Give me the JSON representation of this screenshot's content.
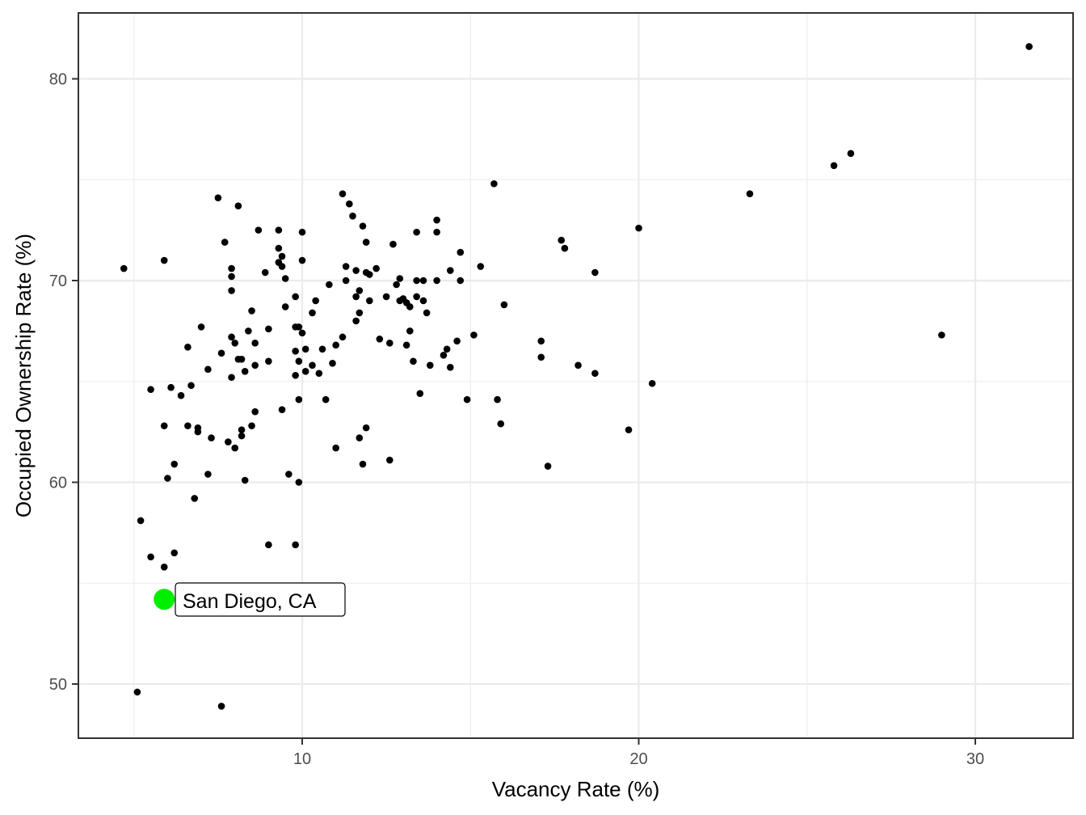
{
  "chart_data": {
    "type": "scatter",
    "title": "",
    "xlabel": "Vacancy Rate (%)",
    "ylabel": "Occupied Ownership Rate (%)",
    "xlim": [
      3.3,
      33.0
    ],
    "ylim": [
      47.3,
      83.2
    ],
    "x_ticks": [
      10,
      20,
      30
    ],
    "y_ticks": [
      50,
      60,
      70,
      80
    ],
    "grid": true,
    "legend": null,
    "point_color": "#000000",
    "highlight": {
      "label": "San Diego, CA",
      "x": 5.9,
      "y": 54.2,
      "color": "#00ee00"
    },
    "points": [
      [
        4.7,
        70.6
      ],
      [
        5.2,
        58.1
      ],
      [
        5.1,
        49.6
      ],
      [
        5.5,
        56.3
      ],
      [
        5.5,
        64.6
      ],
      [
        5.9,
        71.0
      ],
      [
        5.9,
        62.8
      ],
      [
        5.9,
        55.8
      ],
      [
        6.0,
        60.2
      ],
      [
        6.1,
        64.7
      ],
      [
        6.2,
        56.5
      ],
      [
        6.2,
        60.9
      ],
      [
        6.4,
        64.3
      ],
      [
        6.6,
        66.7
      ],
      [
        6.6,
        62.8
      ],
      [
        6.7,
        64.8
      ],
      [
        6.8,
        59.2
      ],
      [
        6.9,
        62.7
      ],
      [
        6.9,
        62.5
      ],
      [
        7.0,
        67.7
      ],
      [
        7.2,
        65.6
      ],
      [
        7.2,
        60.4
      ],
      [
        7.3,
        62.2
      ],
      [
        7.5,
        74.1
      ],
      [
        7.6,
        66.4
      ],
      [
        7.6,
        48.9
      ],
      [
        7.7,
        71.9
      ],
      [
        7.8,
        62.0
      ],
      [
        7.9,
        70.2
      ],
      [
        7.9,
        70.6
      ],
      [
        7.9,
        69.5
      ],
      [
        7.9,
        67.2
      ],
      [
        8.0,
        66.9
      ],
      [
        7.9,
        65.2
      ],
      [
        8.0,
        61.7
      ],
      [
        8.1,
        73.7
      ],
      [
        8.1,
        66.1
      ],
      [
        8.2,
        66.1
      ],
      [
        8.2,
        62.6
      ],
      [
        8.2,
        62.3
      ],
      [
        8.3,
        65.5
      ],
      [
        8.3,
        60.1
      ],
      [
        8.4,
        67.5
      ],
      [
        8.5,
        68.5
      ],
      [
        8.5,
        62.8
      ],
      [
        8.6,
        65.8
      ],
      [
        8.6,
        66.9
      ],
      [
        8.6,
        63.5
      ],
      [
        8.7,
        72.5
      ],
      [
        8.9,
        70.4
      ],
      [
        9.0,
        67.6
      ],
      [
        9.0,
        66.0
      ],
      [
        9.0,
        56.9
      ],
      [
        9.3,
        71.6
      ],
      [
        9.3,
        70.9
      ],
      [
        9.3,
        72.5
      ],
      [
        9.4,
        71.2
      ],
      [
        9.4,
        70.7
      ],
      [
        9.4,
        63.6
      ],
      [
        9.5,
        70.1
      ],
      [
        9.5,
        68.7
      ],
      [
        9.6,
        60.4
      ],
      [
        9.8,
        67.7
      ],
      [
        9.9,
        64.1
      ],
      [
        10.0,
        72.4
      ],
      [
        10.0,
        71.0
      ],
      [
        10.0,
        67.4
      ],
      [
        9.8,
        69.2
      ],
      [
        9.8,
        65.3
      ],
      [
        9.8,
        66.5
      ],
      [
        9.9,
        67.7
      ],
      [
        9.8,
        56.9
      ],
      [
        9.9,
        66.0
      ],
      [
        9.9,
        60.0
      ],
      [
        10.1,
        65.5
      ],
      [
        10.1,
        66.6
      ],
      [
        10.3,
        65.8
      ],
      [
        10.3,
        68.4
      ],
      [
        10.4,
        69.0
      ],
      [
        10.6,
        66.6
      ],
      [
        10.5,
        65.4
      ],
      [
        10.7,
        64.1
      ],
      [
        10.8,
        69.8
      ],
      [
        10.9,
        65.9
      ],
      [
        11.0,
        66.8
      ],
      [
        11.0,
        61.7
      ],
      [
        11.2,
        74.3
      ],
      [
        11.3,
        70.0
      ],
      [
        11.2,
        67.2
      ],
      [
        11.3,
        70.7
      ],
      [
        11.4,
        73.8
      ],
      [
        11.5,
        73.2
      ],
      [
        11.6,
        70.5
      ],
      [
        11.6,
        69.2
      ],
      [
        11.6,
        68.0
      ],
      [
        11.7,
        69.5
      ],
      [
        11.7,
        68.4
      ],
      [
        11.7,
        62.2
      ],
      [
        11.8,
        72.7
      ],
      [
        11.8,
        60.9
      ],
      [
        11.9,
        71.9
      ],
      [
        11.9,
        70.4
      ],
      [
        11.9,
        62.7
      ],
      [
        12.0,
        70.3
      ],
      [
        12.0,
        69.0
      ],
      [
        12.2,
        70.6
      ],
      [
        12.3,
        67.1
      ],
      [
        12.5,
        69.2
      ],
      [
        12.6,
        66.9
      ],
      [
        12.6,
        61.1
      ],
      [
        12.7,
        71.8
      ],
      [
        12.8,
        69.8
      ],
      [
        12.9,
        70.1
      ],
      [
        12.9,
        69.0
      ],
      [
        13.0,
        69.1
      ],
      [
        13.1,
        68.9
      ],
      [
        13.1,
        66.8
      ],
      [
        13.2,
        67.5
      ],
      [
        13.2,
        68.7
      ],
      [
        13.3,
        66.0
      ],
      [
        13.4,
        72.4
      ],
      [
        13.4,
        69.2
      ],
      [
        13.4,
        70.0
      ],
      [
        13.5,
        64.4
      ],
      [
        13.6,
        70.0
      ],
      [
        13.6,
        69.0
      ],
      [
        13.7,
        68.4
      ],
      [
        13.8,
        65.8
      ],
      [
        14.0,
        73.0
      ],
      [
        14.0,
        72.4
      ],
      [
        14.0,
        70.0
      ],
      [
        14.2,
        66.3
      ],
      [
        14.3,
        66.6
      ],
      [
        14.4,
        70.5
      ],
      [
        14.4,
        65.7
      ],
      [
        14.6,
        67.0
      ],
      [
        14.7,
        70.0
      ],
      [
        14.7,
        71.4
      ],
      [
        14.9,
        64.1
      ],
      [
        15.1,
        67.3
      ],
      [
        15.3,
        70.7
      ],
      [
        15.7,
        74.8
      ],
      [
        15.8,
        64.1
      ],
      [
        15.9,
        62.9
      ],
      [
        16.0,
        68.8
      ],
      [
        17.1,
        67.0
      ],
      [
        17.1,
        66.2
      ],
      [
        17.3,
        60.8
      ],
      [
        17.7,
        72.0
      ],
      [
        17.8,
        71.6
      ],
      [
        18.2,
        65.8
      ],
      [
        18.7,
        70.4
      ],
      [
        18.7,
        65.4
      ],
      [
        19.7,
        62.6
      ],
      [
        20.0,
        72.6
      ],
      [
        20.4,
        64.9
      ],
      [
        23.3,
        74.3
      ],
      [
        25.8,
        75.7
      ],
      [
        26.3,
        76.3
      ],
      [
        29.0,
        67.3
      ],
      [
        31.6,
        81.6
      ]
    ]
  }
}
